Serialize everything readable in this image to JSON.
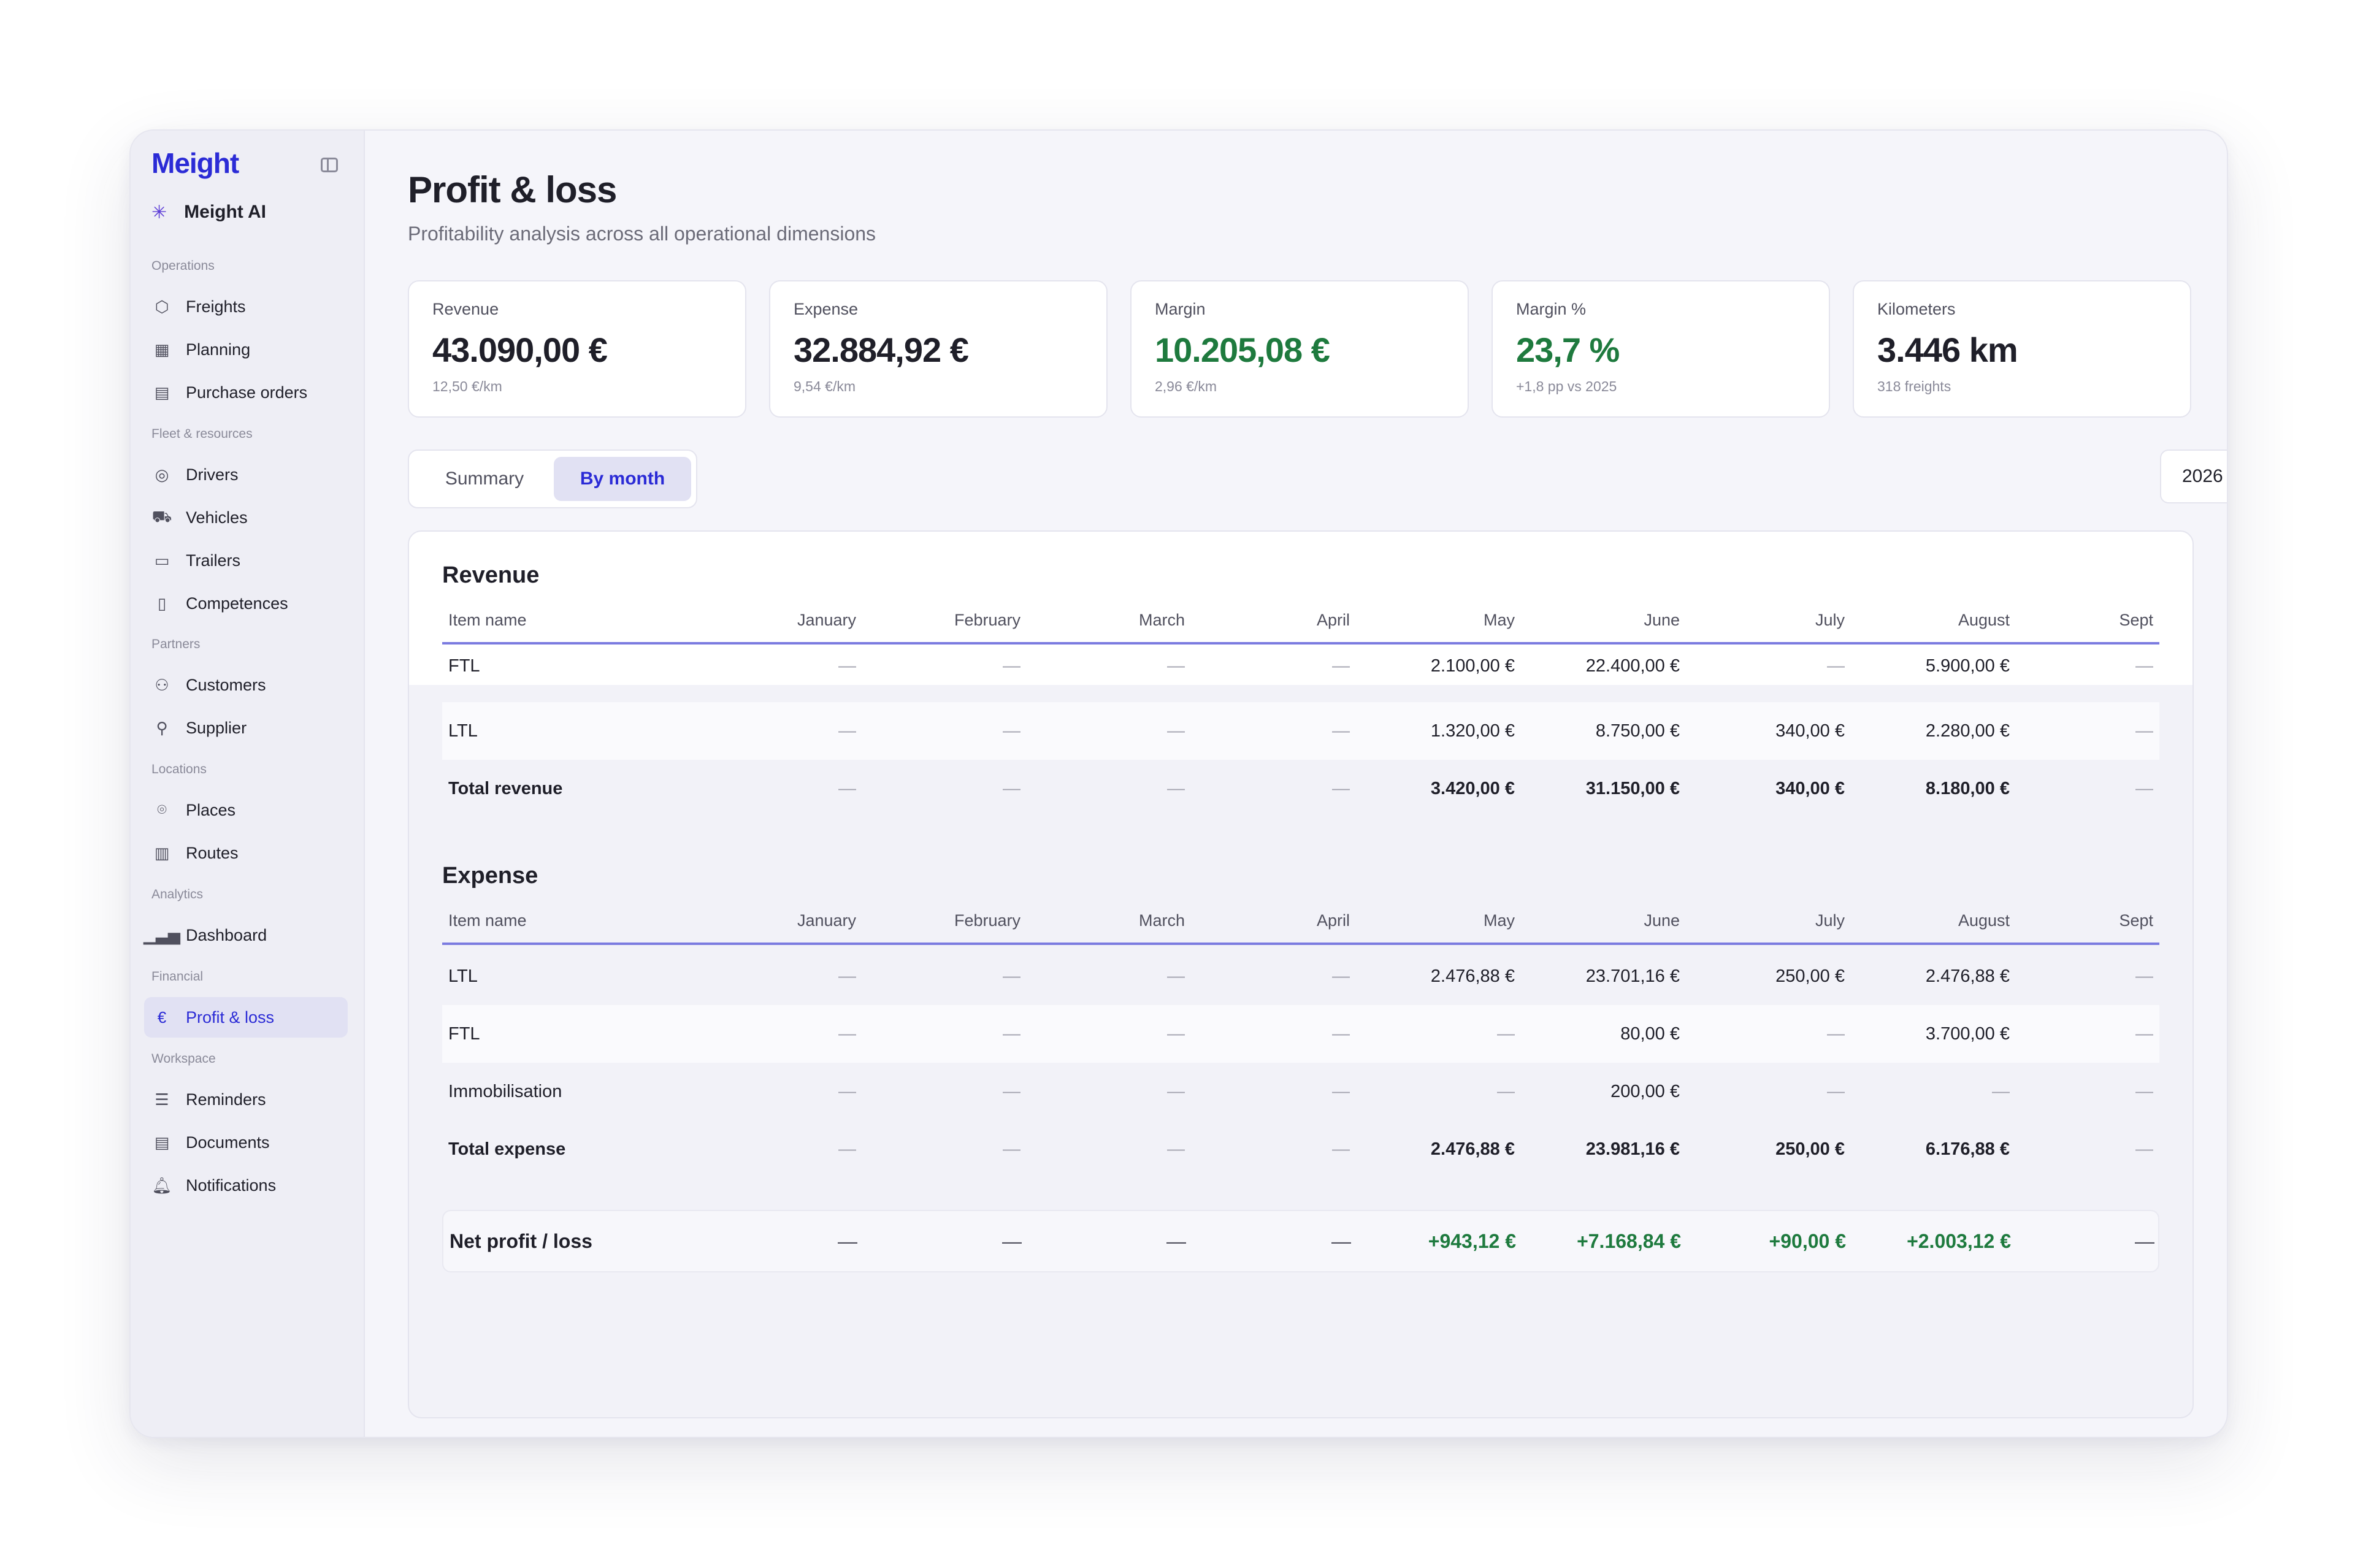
{
  "app": {
    "brand": "Meight",
    "ai_label": "Meight AI"
  },
  "sidebar": {
    "groups": {
      "operations": "Operations",
      "fleet": "Fleet & resources",
      "partners": "Partners",
      "locations": "Locations",
      "analytics": "Analytics",
      "financial": "Financial",
      "workspace": "Workspace"
    },
    "items": {
      "freights": "Freights",
      "planning": "Planning",
      "purchase_orders": "Purchase orders",
      "drivers": "Drivers",
      "vehicles": "Vehicles",
      "trailers": "Trailers",
      "competences": "Competences",
      "customers": "Customers",
      "supplier": "Supplier",
      "places": "Places",
      "routes": "Routes",
      "dashboard": "Dashboard",
      "profit_loss": "Profit & loss",
      "reminders": "Reminders",
      "documents": "Documents",
      "notifications": "Notifications"
    },
    "active": "profit_loss"
  },
  "page": {
    "title": "Profit & loss",
    "subtitle": "Profitability analysis across all operational dimensions"
  },
  "kpis": [
    {
      "label": "Revenue",
      "value": "43.090,00 €",
      "sub": "12,50 €/km"
    },
    {
      "label": "Expense",
      "value": "32.884,92 €",
      "sub": "9,54 €/km"
    },
    {
      "label": "Margin",
      "value": "10.205,08 €",
      "sub": "2,96 €/km",
      "color": "#1e7a3e"
    },
    {
      "label": "Margin %",
      "value": "23,7 %",
      "sub": "+1,8 pp vs 2025",
      "color": "#1e7a3e"
    },
    {
      "label": "Kilometers",
      "value": "3.446 km",
      "sub": "318 freights"
    }
  ],
  "tabs": {
    "summary": "Summary",
    "by_month": "By month",
    "active": "by_month"
  },
  "year_select": {
    "value": "2026"
  },
  "table": {
    "columns": [
      "Item name",
      "January",
      "February",
      "March",
      "April",
      "May",
      "June",
      "July",
      "August",
      "Sept"
    ],
    "revenue": {
      "title": "Revenue",
      "rows": [
        {
          "name": "FTL",
          "values": [
            "—",
            "—",
            "—",
            "—",
            "2.100,00 €",
            "22.400,00 €",
            "—",
            "5.900,00 €",
            "—"
          ]
        },
        {
          "name": "LTL",
          "values": [
            "—",
            "—",
            "—",
            "—",
            "1.320,00 €",
            "8.750,00 €",
            "340,00 €",
            "2.280,00 €",
            "—"
          ]
        }
      ],
      "total": {
        "name": "Total revenue",
        "values": [
          "—",
          "—",
          "—",
          "—",
          "3.420,00 €",
          "31.150,00 €",
          "340,00 €",
          "8.180,00 €",
          "—"
        ]
      }
    },
    "expense": {
      "title": "Expense",
      "rows": [
        {
          "name": "LTL",
          "values": [
            "—",
            "—",
            "—",
            "—",
            "2.476,88 €",
            "23.701,16 €",
            "250,00 €",
            "2.476,88 €",
            "—"
          ]
        },
        {
          "name": "FTL",
          "values": [
            "—",
            "—",
            "—",
            "—",
            "—",
            "80,00 €",
            "—",
            "3.700,00 €",
            "—"
          ]
        },
        {
          "name": "Immobilisation",
          "values": [
            "—",
            "—",
            "—",
            "—",
            "—",
            "200,00 €",
            "—",
            "—",
            "—"
          ]
        }
      ],
      "total": {
        "name": "Total expense",
        "values": [
          "—",
          "—",
          "—",
          "—",
          "2.476,88 €",
          "23.981,16 €",
          "250,00 €",
          "6.176,88 €",
          "—"
        ]
      }
    },
    "net": {
      "name": "Net profit / loss",
      "values": [
        "—",
        "—",
        "—",
        "—",
        "+943,12 €",
        "+7.168,84 €",
        "+90,00 €",
        "+2.003,12 €",
        "—"
      ]
    }
  }
}
